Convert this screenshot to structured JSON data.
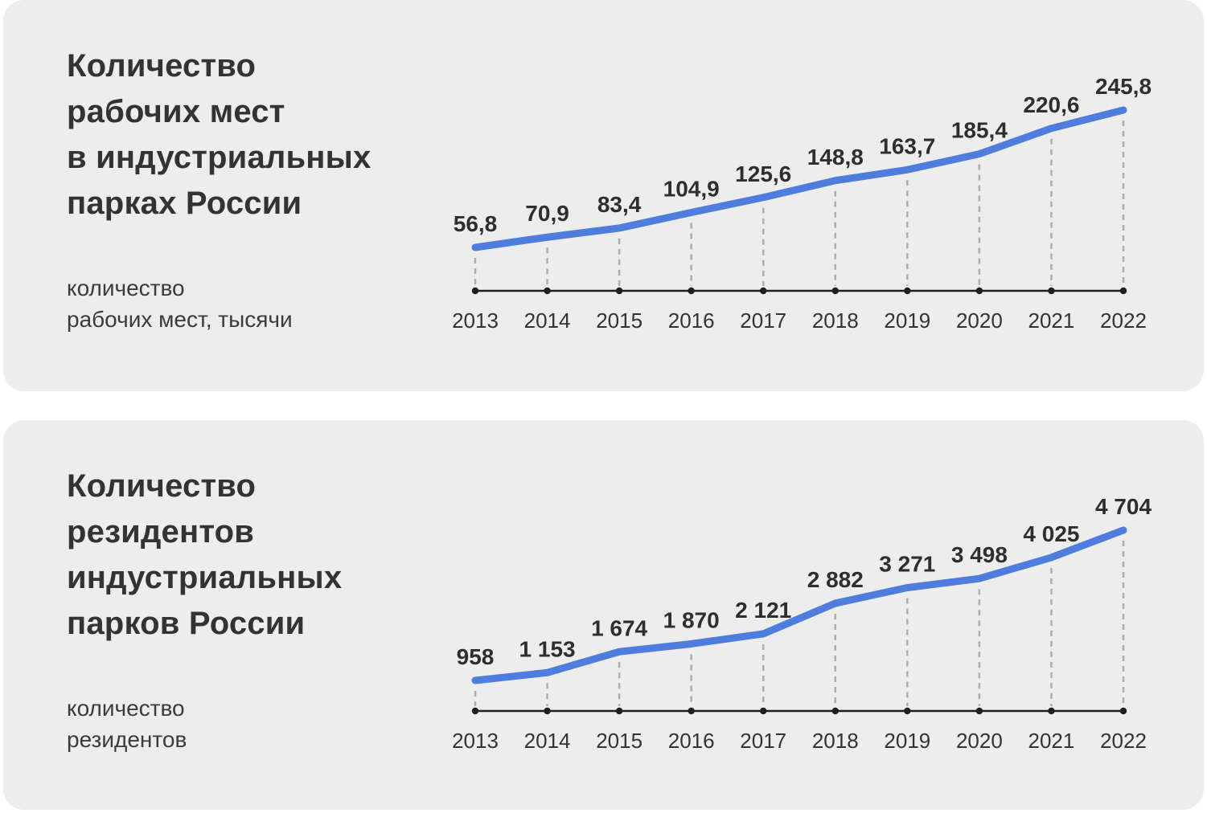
{
  "page": {
    "background_color": "#ffffff",
    "card_color": "#ededed",
    "accent_line_color": "#4f7dde",
    "axis_color": "#1f1f1f",
    "guide_dash_color": "#adadad",
    "text_color": "#333333"
  },
  "chart_data": [
    {
      "type": "line",
      "title": "Количество рабочих мест в индустриальных парках России",
      "title_lines": [
        "Количество",
        "рабочих мест",
        "в индустриальных",
        "парках России"
      ],
      "subtitle_lines": [
        "количество",
        "рабочих мест, тысячи"
      ],
      "ylabel": "количество рабочих мест, тысячи",
      "categories": [
        "2013",
        "2014",
        "2015",
        "2016",
        "2017",
        "2018",
        "2019",
        "2020",
        "2021",
        "2022"
      ],
      "values": [
        56.8,
        70.9,
        83.4,
        104.9,
        125.6,
        148.8,
        163.7,
        185.4,
        220.6,
        245.8
      ],
      "value_labels": [
        "56,8",
        "70,9",
        "83,4",
        "104,9",
        "125,6",
        "148,8",
        "163,7",
        "185,4",
        "220,6",
        "245,8"
      ],
      "ylim": [
        56.8,
        245.8
      ],
      "grid": "dashed vertical guides from points to x-axis",
      "legend": "none"
    },
    {
      "type": "line",
      "title": "Количество резидентов индустриальных парков России",
      "title_lines": [
        "Количество",
        "резидентов",
        "индустриальных",
        "парков России"
      ],
      "subtitle_lines": [
        "количество",
        "резидентов"
      ],
      "ylabel": "количество резидентов",
      "categories": [
        "2013",
        "2014",
        "2015",
        "2016",
        "2017",
        "2018",
        "2019",
        "2020",
        "2021",
        "2022"
      ],
      "values": [
        958,
        1153,
        1674,
        1870,
        2121,
        2882,
        3271,
        3498,
        4025,
        4704
      ],
      "value_labels": [
        "958",
        "1 153",
        "1 674",
        "1 870",
        "2 121",
        "2 882",
        "3 271",
        "3 498",
        "4 025",
        "4 704"
      ],
      "ylim": [
        958,
        4704
      ],
      "grid": "dashed vertical guides from points to x-axis",
      "legend": "none"
    }
  ]
}
